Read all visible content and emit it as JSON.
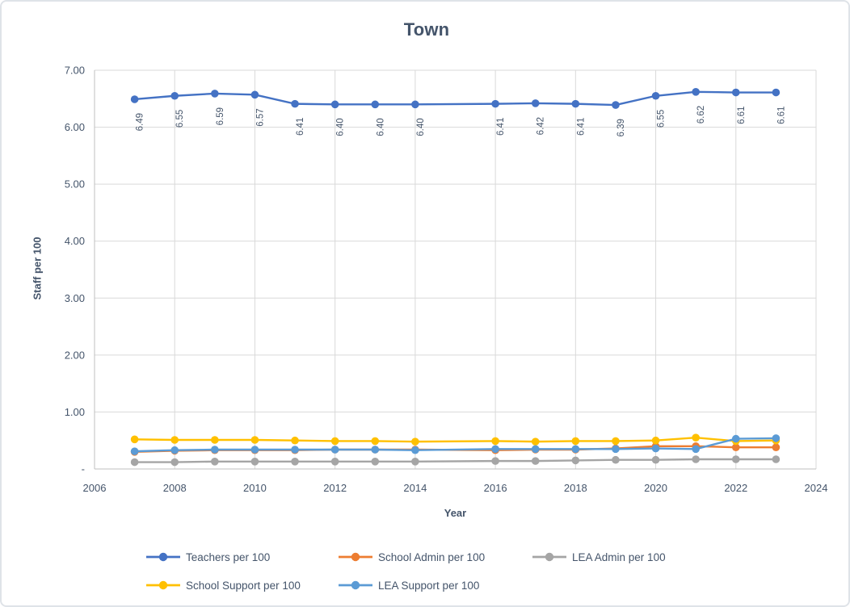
{
  "chart_data": {
    "type": "line",
    "title": "Town",
    "xlabel": "Year",
    "ylabel": "Staff per 100",
    "xlim": [
      2006,
      2024
    ],
    "ylim": [
      0,
      7
    ],
    "grid": true,
    "legend_position": "bottom",
    "text_color": "#44546A",
    "gridline_color": "#D9D9D9",
    "axis_line_color": "#BFBFBF",
    "x_ticks": [
      2006,
      2008,
      2010,
      2012,
      2014,
      2016,
      2018,
      2020,
      2022,
      2024
    ],
    "y_ticks": [
      {
        "value": 7,
        "label": "7.00"
      },
      {
        "value": 6,
        "label": "6.00"
      },
      {
        "value": 5,
        "label": "5.00"
      },
      {
        "value": 4,
        "label": "4.00"
      },
      {
        "value": 3,
        "label": "3.00"
      },
      {
        "value": 2,
        "label": "2.00"
      },
      {
        "value": 1,
        "label": "1.00"
      },
      {
        "value": 0,
        "label": "-"
      }
    ],
    "x": [
      2007,
      2008,
      2009,
      2010,
      2011,
      2012,
      2013,
      2014,
      2015,
      2016,
      2017,
      2018,
      2019,
      2020,
      2021,
      2022,
      2023
    ],
    "note": "2015 has no data points (gap bridged by lines, no markers or labels)",
    "series": [
      {
        "name": "Teachers per 100",
        "color": "#4472C4",
        "values": [
          6.49,
          6.55,
          6.59,
          6.57,
          6.41,
          6.4,
          6.4,
          6.4,
          null,
          6.41,
          6.42,
          6.41,
          6.39,
          6.55,
          6.62,
          6.61,
          6.61
        ],
        "data_labels": [
          "6.49",
          "6.55",
          "6.59",
          "6.57",
          "6.41",
          "6.40",
          "6.40",
          "6.40",
          null,
          "6.41",
          "6.42",
          "6.41",
          "6.39",
          "6.55",
          "6.62",
          "6.61",
          "6.61"
        ]
      },
      {
        "name": "School Admin per 100",
        "color": "#ED7D31",
        "values": [
          0.3,
          0.32,
          0.33,
          0.33,
          0.33,
          0.34,
          0.34,
          0.34,
          null,
          0.33,
          0.34,
          0.34,
          0.36,
          0.4,
          0.4,
          0.38,
          0.38
        ]
      },
      {
        "name": "LEA Admin per 100",
        "color": "#A5A5A5",
        "values": [
          0.12,
          0.12,
          0.13,
          0.13,
          0.13,
          0.13,
          0.13,
          0.13,
          null,
          0.14,
          0.14,
          0.15,
          0.16,
          0.16,
          0.17,
          0.17,
          0.17
        ]
      },
      {
        "name": "School Support per 100",
        "color": "#FFC000",
        "values": [
          0.52,
          0.51,
          0.51,
          0.51,
          0.5,
          0.49,
          0.49,
          0.48,
          null,
          0.49,
          0.48,
          0.49,
          0.49,
          0.5,
          0.55,
          0.49,
          0.5
        ]
      },
      {
        "name": "LEA Support per 100",
        "color": "#5B9BD5",
        "values": [
          0.31,
          0.33,
          0.34,
          0.34,
          0.34,
          0.34,
          0.34,
          0.33,
          null,
          0.35,
          0.35,
          0.35,
          0.35,
          0.36,
          0.35,
          0.53,
          0.54
        ]
      }
    ]
  }
}
